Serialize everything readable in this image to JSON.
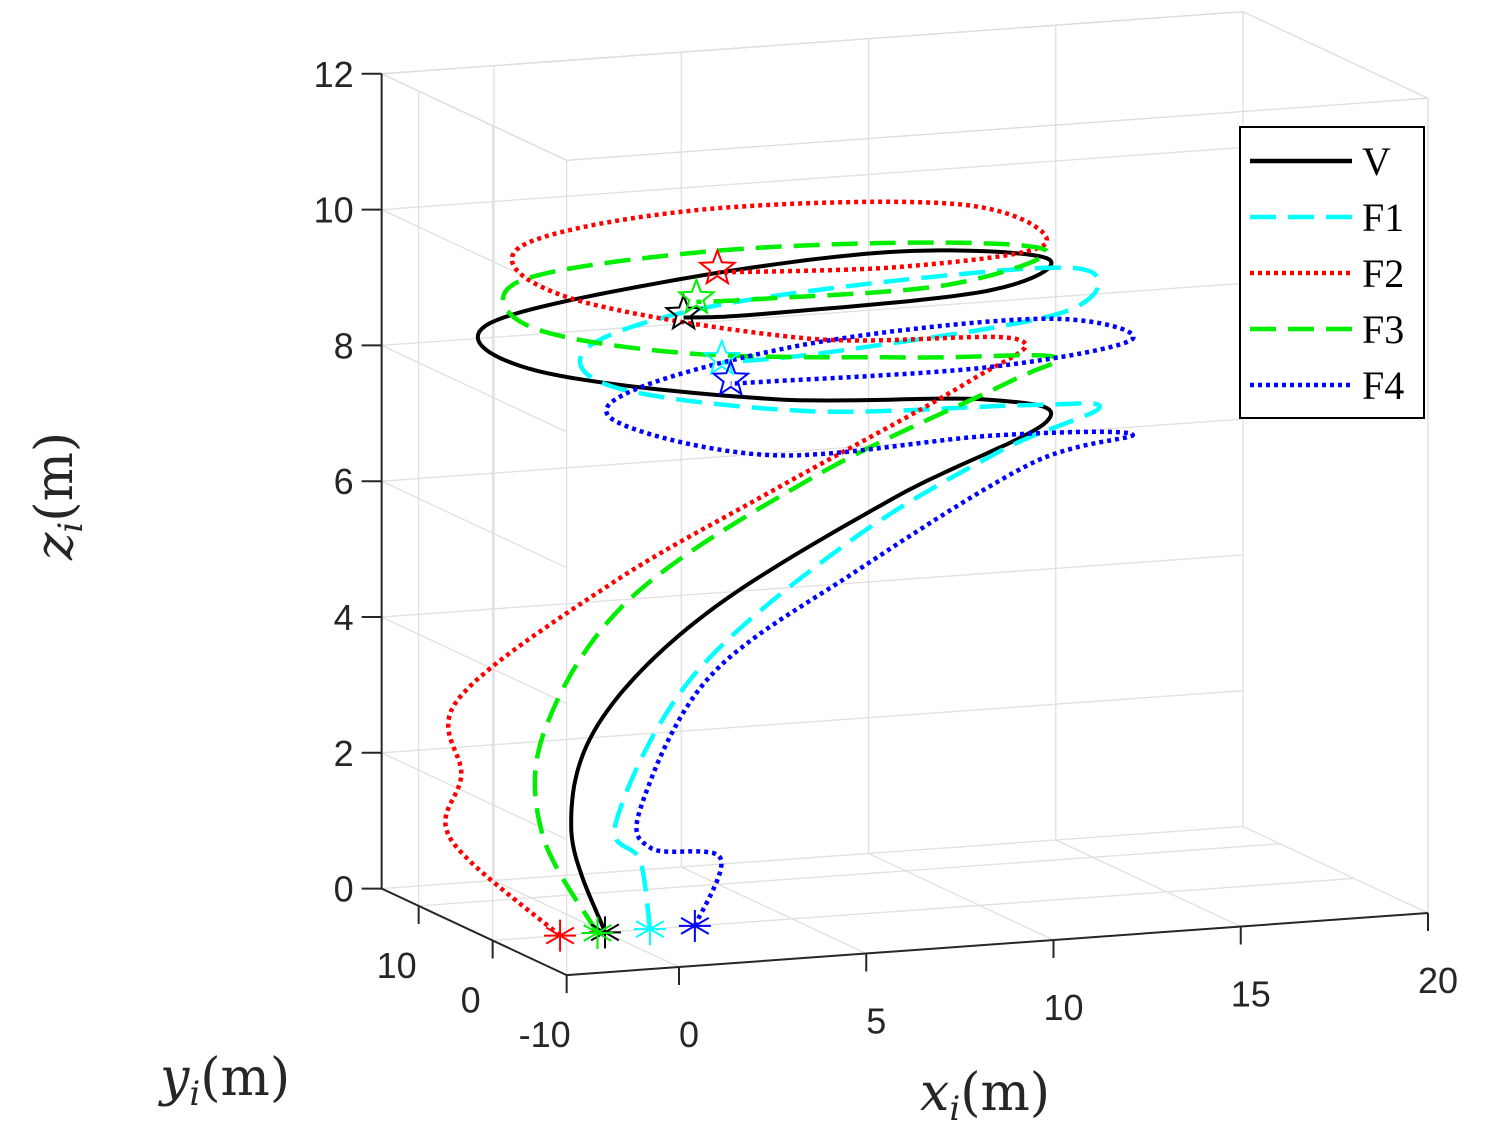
{
  "chart_data": {
    "type": "line3d",
    "title": "",
    "xlabel_var": "x",
    "xlabel_sub": "i",
    "xlabel_unit": "(m)",
    "ylabel_var": "y",
    "ylabel_sub": "i",
    "ylabel_unit": "(m)",
    "zlabel_var": "z",
    "zlabel_sub": "i",
    "zlabel_unit": "(m)",
    "xlim": [
      -3,
      20
    ],
    "ylim": [
      -10,
      15
    ],
    "zlim": [
      0,
      12
    ],
    "x_ticks": [
      "0",
      "5",
      "10",
      "15",
      "20"
    ],
    "y_ticks": [
      "10",
      "0",
      "-10"
    ],
    "z_ticks": [
      "0",
      "2",
      "4",
      "6",
      "8",
      "10",
      "12"
    ],
    "grid": true,
    "legend_position": "top-right",
    "series": [
      {
        "name": "V",
        "color": "#000000",
        "style": "solid",
        "start": [
          0,
          0,
          0
        ],
        "path": [
          [
            0,
            0,
            0
          ],
          [
            -0.8,
            0.5,
            1.5
          ],
          [
            0,
            1,
            3
          ],
          [
            3,
            1.5,
            4.5
          ],
          [
            8,
            1.5,
            6
          ],
          [
            12,
            1,
            7
          ],
          [
            10,
            -1,
            7.5
          ],
          [
            4,
            -2,
            7.8
          ],
          [
            -2,
            -1,
            8.4
          ],
          [
            -3,
            1,
            9
          ],
          [
            2,
            2,
            9.4
          ],
          [
            8,
            2,
            9.6
          ],
          [
            12,
            1,
            9.4
          ],
          [
            10,
            -1,
            9.1
          ],
          [
            4,
            -1,
            9
          ],
          [
            2,
            -0.5,
            9
          ]
        ],
        "end": [
          2,
          -0.5,
          9
        ]
      },
      {
        "name": "F1",
        "color": "#00ffff",
        "style": "dash",
        "start": [
          1.2,
          0,
          0
        ],
        "path": [
          [
            1.2,
            0,
            0
          ],
          [
            1,
            0.3,
            1
          ],
          [
            0.4,
            0.5,
            1.6
          ],
          [
            2.6,
            1.3,
            3.6
          ],
          [
            6.8,
            1.5,
            5.4
          ],
          [
            10.8,
            1.2,
            6.6
          ],
          [
            13.2,
            0,
            7.2
          ],
          [
            11,
            -1.4,
            7.4
          ],
          [
            5,
            -2.4,
            7.6
          ],
          [
            0,
            -1.6,
            8.1
          ],
          [
            -0.4,
            0.4,
            8.6
          ],
          [
            3,
            1.6,
            9
          ],
          [
            9,
            1.8,
            9.2
          ],
          [
            13,
            0.8,
            9.2
          ],
          [
            12,
            -1,
            8.7
          ],
          [
            6,
            -1.4,
            8.4
          ],
          [
            3,
            -0.6,
            8.3
          ]
        ],
        "end": [
          3,
          -0.6,
          8.3
        ]
      },
      {
        "name": "F2",
        "color": "#ff0000",
        "style": "dot",
        "start": [
          -1.2,
          0,
          0
        ],
        "path": [
          [
            -1.2,
            0,
            0
          ],
          [
            -4,
            0.6,
            1.5
          ],
          [
            -3.6,
            1.2,
            2.4
          ],
          [
            -3.6,
            1.6,
            3.5
          ],
          [
            0.6,
            2.2,
            5
          ],
          [
            5,
            2.4,
            6.2
          ],
          [
            10,
            1.8,
            7.6
          ],
          [
            11,
            0,
            8.3
          ],
          [
            5.2,
            -1.2,
            8.6
          ],
          [
            -1,
            -0.4,
            9.4
          ],
          [
            -2,
            1.4,
            10.1
          ],
          [
            3,
            2.4,
            10.4
          ],
          [
            10,
            2.4,
            10.2
          ],
          [
            12,
            1.2,
            9.6
          ],
          [
            8,
            -0.2,
            9.5
          ],
          [
            3,
            0,
            9.6
          ]
        ],
        "end": [
          3,
          0,
          9.6
        ]
      },
      {
        "name": "F3",
        "color": "#00ee00",
        "style": "dash",
        "start": [
          -0.2,
          0,
          0
        ],
        "path": [
          [
            -0.2,
            0,
            0
          ],
          [
            -1.6,
            0.4,
            1.5
          ],
          [
            -1.4,
            1,
            3
          ],
          [
            1,
            1.6,
            4.8
          ],
          [
            6,
            1.8,
            6.4
          ],
          [
            11,
            1.2,
            7.6
          ],
          [
            12,
            0,
            8
          ],
          [
            8,
            -1,
            8.2
          ],
          [
            2,
            -1,
            8.5
          ],
          [
            -2,
            0,
            9
          ],
          [
            -2,
            1.4,
            9.6
          ],
          [
            3,
            2,
            9.8
          ],
          [
            9,
            2,
            9.7
          ],
          [
            12,
            1,
            9.5
          ],
          [
            9,
            -0.5,
            9.2
          ],
          [
            4,
            -0.6,
            9.2
          ],
          [
            2.4,
            -0.2,
            9.2
          ]
        ],
        "end": [
          2.4,
          -0.2,
          9.2
        ]
      },
      {
        "name": "F4",
        "color": "#0000ff",
        "style": "dot",
        "start": [
          2.4,
          0,
          0
        ],
        "path": [
          [
            2.4,
            0,
            0
          ],
          [
            3,
            -0.4,
            1
          ],
          [
            1.2,
            -0.2,
            1.2
          ],
          [
            1,
            0.2,
            1.8
          ],
          [
            3,
            1,
            3.6
          ],
          [
            7,
            1.2,
            5
          ],
          [
            11.6,
            1,
            6.4
          ],
          [
            14,
            -0.4,
            6.8
          ],
          [
            10,
            -1.6,
            7
          ],
          [
            4,
            -2.6,
            7
          ],
          [
            0,
            -1.6,
            7.6
          ],
          [
            1,
            0,
            8
          ],
          [
            6,
            1.2,
            8.4
          ],
          [
            12,
            1.2,
            8.5
          ],
          [
            14,
            -0.4,
            8.2
          ],
          [
            10,
            -1.4,
            8
          ],
          [
            4,
            -1,
            8
          ],
          [
            3.2,
            -0.8,
            8
          ]
        ],
        "end": [
          3.2,
          -0.8,
          8
        ]
      }
    ]
  }
}
